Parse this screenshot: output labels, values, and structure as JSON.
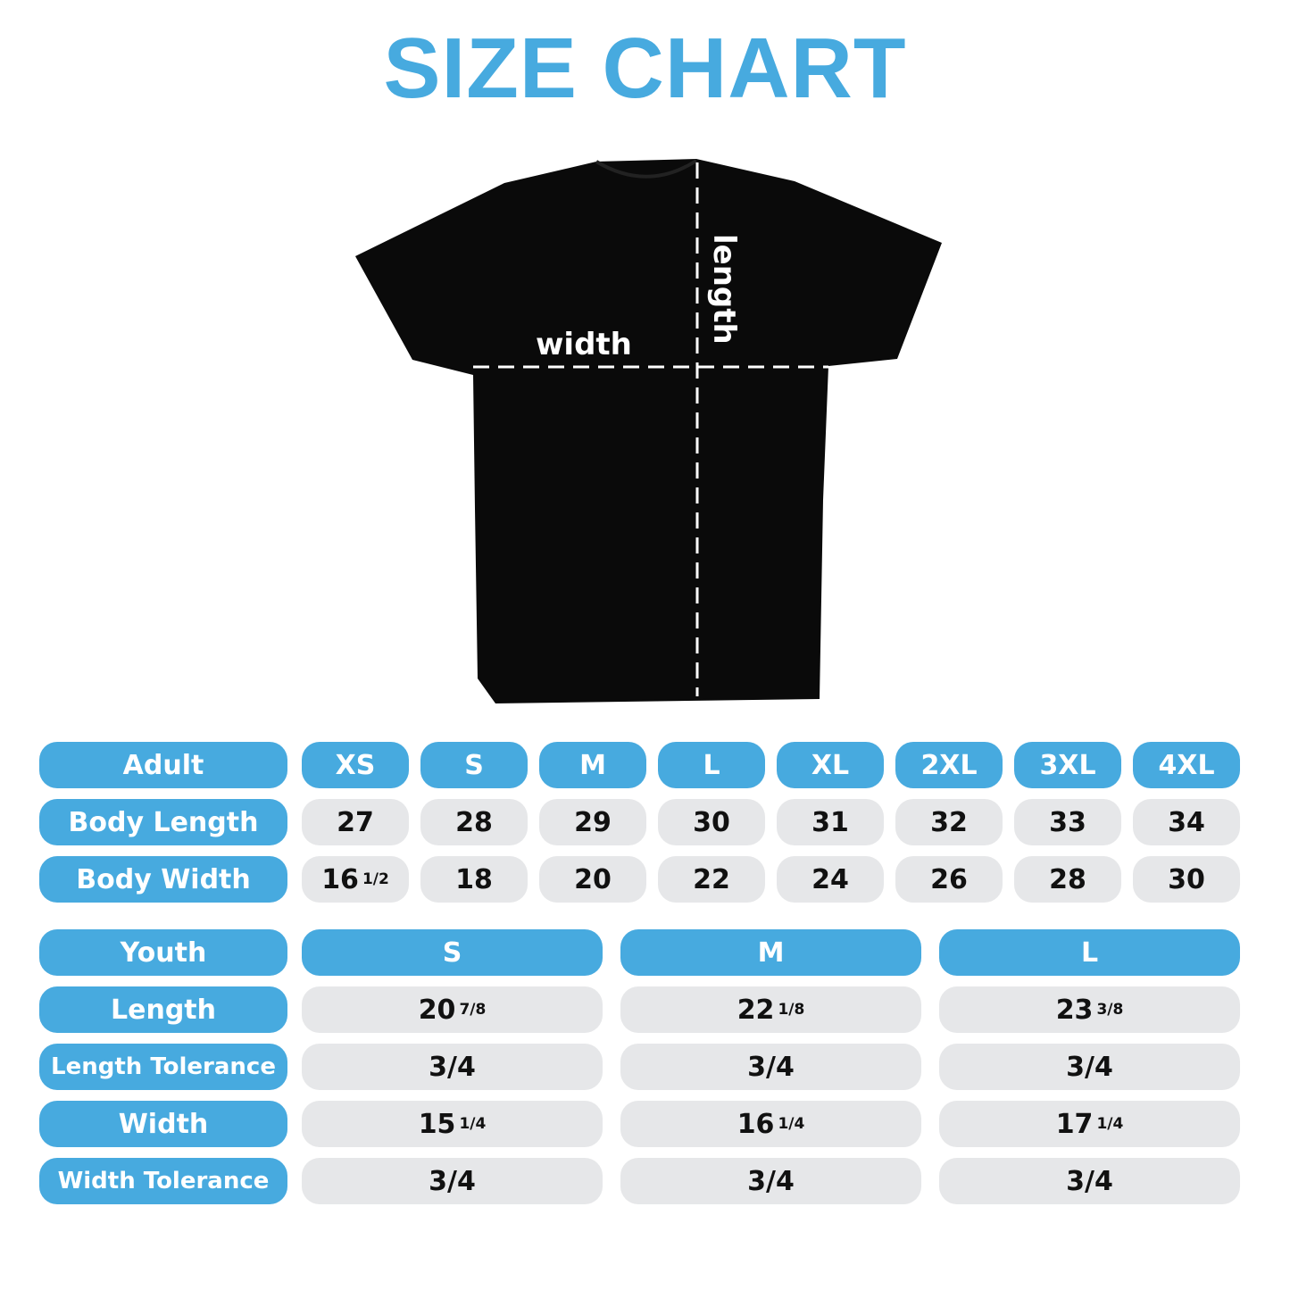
{
  "title": "SIZE CHART",
  "shirt": {
    "width_label": "width",
    "length_label": "length",
    "shirt_color": "#000000",
    "line_color": "#ffffff"
  },
  "colors": {
    "accent": "#47aadf",
    "cell": "#e6e7e9"
  },
  "adult": {
    "header": "Adult",
    "sizes": [
      "XS",
      "S",
      "M",
      "L",
      "XL",
      "2XL",
      "3XL",
      "4XL"
    ],
    "rows": [
      {
        "label": "Body Length",
        "values": [
          {
            "whole": "27"
          },
          {
            "whole": "28"
          },
          {
            "whole": "29"
          },
          {
            "whole": "30"
          },
          {
            "whole": "31"
          },
          {
            "whole": "32"
          },
          {
            "whole": "33"
          },
          {
            "whole": "34"
          }
        ]
      },
      {
        "label": "Body Width",
        "values": [
          {
            "whole": "16",
            "frac": "1/2"
          },
          {
            "whole": "18"
          },
          {
            "whole": "20"
          },
          {
            "whole": "22"
          },
          {
            "whole": "24"
          },
          {
            "whole": "26"
          },
          {
            "whole": "28"
          },
          {
            "whole": "30"
          }
        ]
      }
    ]
  },
  "youth": {
    "header": "Youth",
    "sizes": [
      "S",
      "M",
      "L"
    ],
    "rows": [
      {
        "label": "Length",
        "values": [
          {
            "whole": "20",
            "frac": "7/8"
          },
          {
            "whole": "22",
            "frac": "1/8"
          },
          {
            "whole": "23",
            "frac": "3/8"
          }
        ]
      },
      {
        "label": "Length Tolerance",
        "values": [
          {
            "whole": "3/4"
          },
          {
            "whole": "3/4"
          },
          {
            "whole": "3/4"
          }
        ]
      },
      {
        "label": "Width",
        "values": [
          {
            "whole": "15",
            "frac": "1/4"
          },
          {
            "whole": "16",
            "frac": "1/4"
          },
          {
            "whole": "17",
            "frac": "1/4"
          }
        ]
      },
      {
        "label": "Width Tolerance",
        "values": [
          {
            "whole": "3/4"
          },
          {
            "whole": "3/4"
          },
          {
            "whole": "3/4"
          }
        ]
      }
    ]
  }
}
